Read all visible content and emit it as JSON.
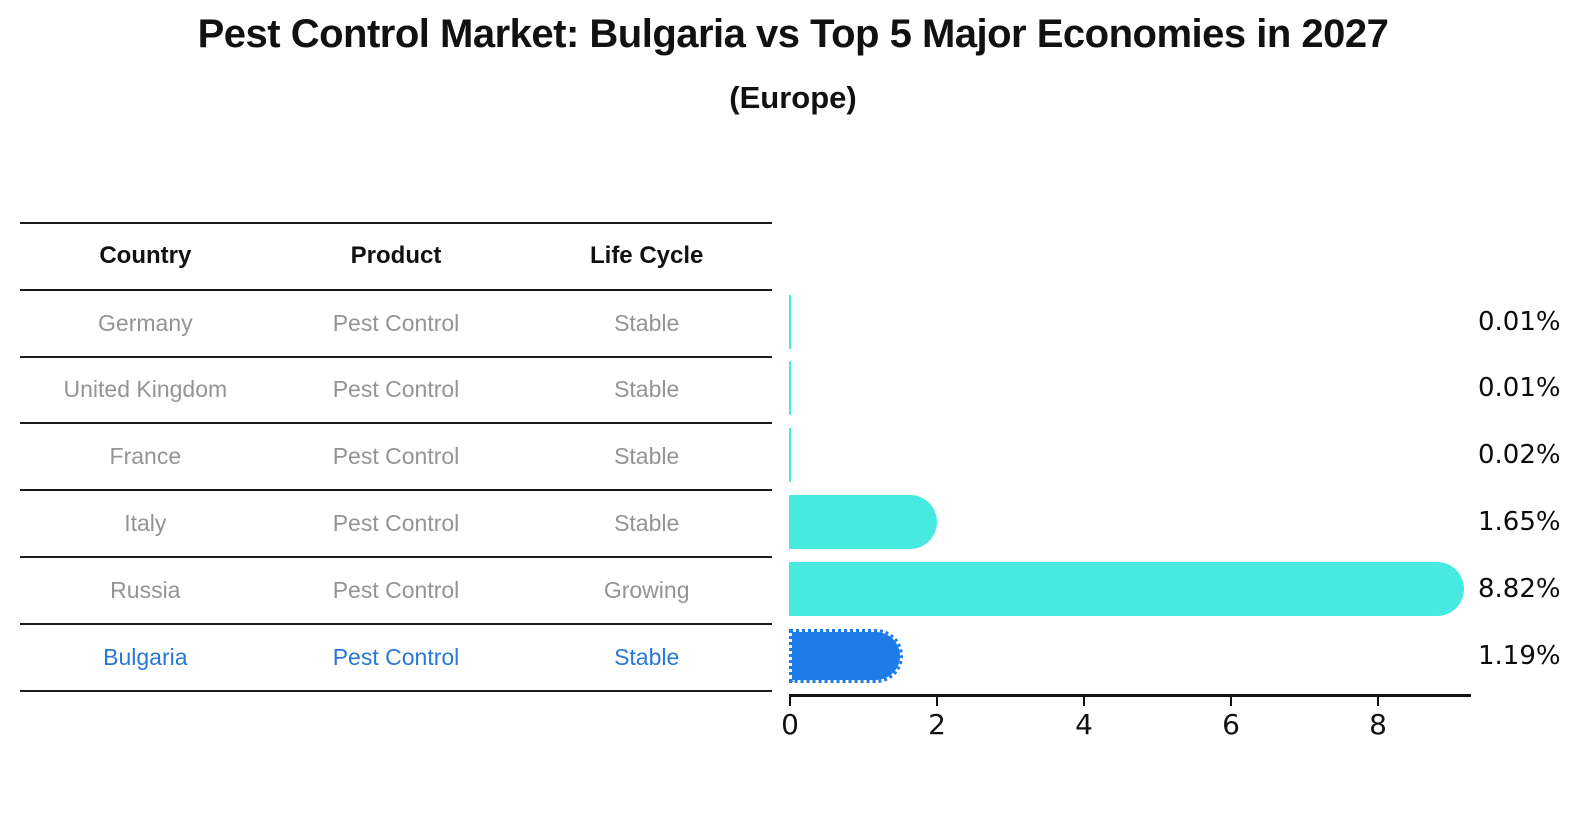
{
  "header": {
    "title": "Pest Control Market: Bulgaria vs Top 5 Major Economies in 2027",
    "subtitle": "(Europe)"
  },
  "table": {
    "columns": [
      "Country",
      "Product",
      "Life Cycle"
    ],
    "rows": [
      {
        "country": "Germany",
        "product": "Pest Control",
        "life_cycle": "Stable",
        "highlighted": false
      },
      {
        "country": "United Kingdom",
        "product": "Pest Control",
        "life_cycle": "Stable",
        "highlighted": false
      },
      {
        "country": "France",
        "product": "Pest Control",
        "life_cycle": "Stable",
        "highlighted": false
      },
      {
        "country": "Italy",
        "product": "Pest Control",
        "life_cycle": "Stable",
        "highlighted": false
      },
      {
        "country": "Russia",
        "product": "Pest Control",
        "life_cycle": "Growing",
        "highlighted": false
      },
      {
        "country": "Bulgaria",
        "product": "Pest Control",
        "life_cycle": "Stable",
        "highlighted": true
      }
    ]
  },
  "chart_data": {
    "type": "bar",
    "orientation": "horizontal",
    "title": "Pest Control Market: Bulgaria vs Top 5 Major Economies in 2027",
    "subtitle": "(Europe)",
    "categories": [
      "Germany",
      "United Kingdom",
      "France",
      "Italy",
      "Russia",
      "Bulgaria"
    ],
    "values": [
      0.01,
      0.01,
      0.02,
      1.65,
      8.82,
      1.19
    ],
    "value_labels": [
      "0.01%",
      "0.01%",
      "0.02%",
      "1.65%",
      "8.82%",
      "1.19%"
    ],
    "xlabel": "",
    "ylabel": "",
    "xticks": [
      0,
      2,
      4,
      6,
      8
    ],
    "xlim": [
      0,
      9.25
    ],
    "grid": false,
    "legend": "none",
    "highlight_category": "Bulgaria",
    "colors": {
      "bar_default": "#47e9e0",
      "bar_highlight": "#1e7ce8",
      "highlight_text": "#2878d6",
      "row_text": "#949494",
      "axis_text": "#111111"
    }
  }
}
